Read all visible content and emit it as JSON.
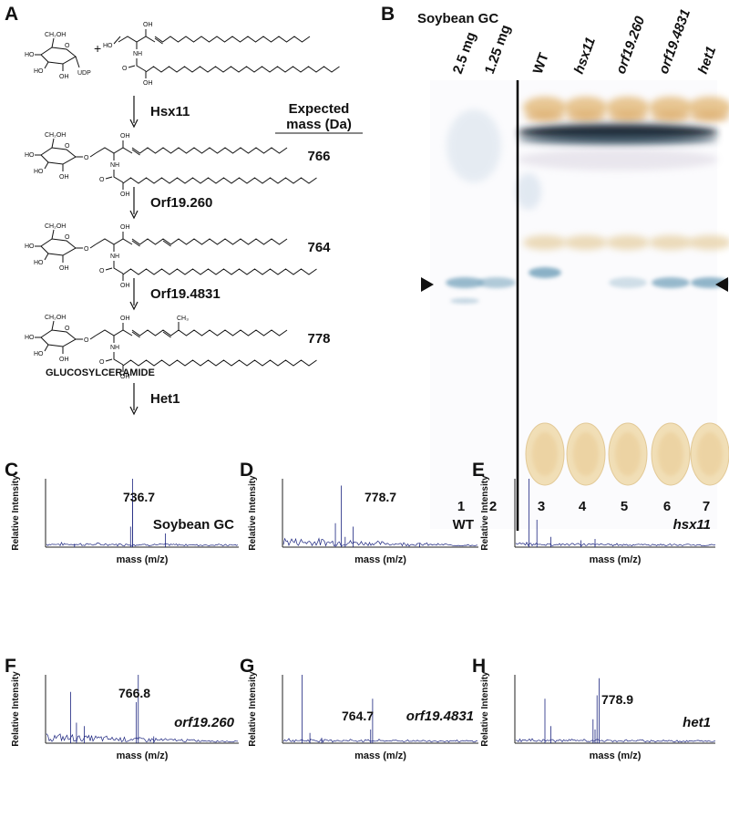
{
  "panel_a": {
    "label": "A",
    "udp": "UDP",
    "plus": "+",
    "mass_header": [
      "Expected",
      "mass (Da)"
    ],
    "atoms": {
      "ho": "HO",
      "ch2oh": "CH₂OH",
      "oh": "OH",
      "o": "O",
      "nh": "NH",
      "ch3": "CH₃"
    },
    "steps": [
      {
        "enzyme": "Hsx11",
        "mass": "766"
      },
      {
        "enzyme": "Orf19.260",
        "mass": "764"
      },
      {
        "enzyme": "Orf19.4831",
        "mass": "778"
      },
      {
        "enzyme": "Het1"
      }
    ],
    "product_label": "GLUCOSYLCERAMIDE"
  },
  "panel_b": {
    "label": "B",
    "title": "Soybean GC",
    "lanes": [
      {
        "header": "2.5 mg",
        "number": "1"
      },
      {
        "header": "1.25 mg",
        "number": "2"
      },
      {
        "header": "WT",
        "number": "3"
      },
      {
        "header": "hsx11",
        "number": "4"
      },
      {
        "header": "orf19.260",
        "number": "5"
      },
      {
        "header": "orf19.4831",
        "number": "6"
      },
      {
        "header": "het1",
        "number": "7"
      }
    ]
  },
  "spectra": [
    {
      "label": "C",
      "peak": "736.7",
      "sample": "Soybean GC",
      "y_label": "Relative Intensity",
      "x_label": "mass (m/z)"
    },
    {
      "label": "D",
      "peak": "778.7",
      "sample": "WT",
      "y_label": "Relative Intensity",
      "x_label": "mass (m/z)"
    },
    {
      "label": "E",
      "sample": "hsx11",
      "y_label": "Relative Intensity",
      "x_label": "mass (m/z)"
    },
    {
      "label": "F",
      "peak": "766.8",
      "sample": "orf19.260",
      "y_label": "Relative Intensity",
      "x_label": "mass (m/z)"
    },
    {
      "label": "G",
      "peak": "764.7",
      "sample": "orf19.4831",
      "y_label": "Relative Intensity",
      "x_label": "mass (m/z)"
    },
    {
      "label": "H",
      "peak": "778.9",
      "sample": "het1",
      "y_label": "Relative Intensity",
      "x_label": "mass (m/z)"
    }
  ]
}
